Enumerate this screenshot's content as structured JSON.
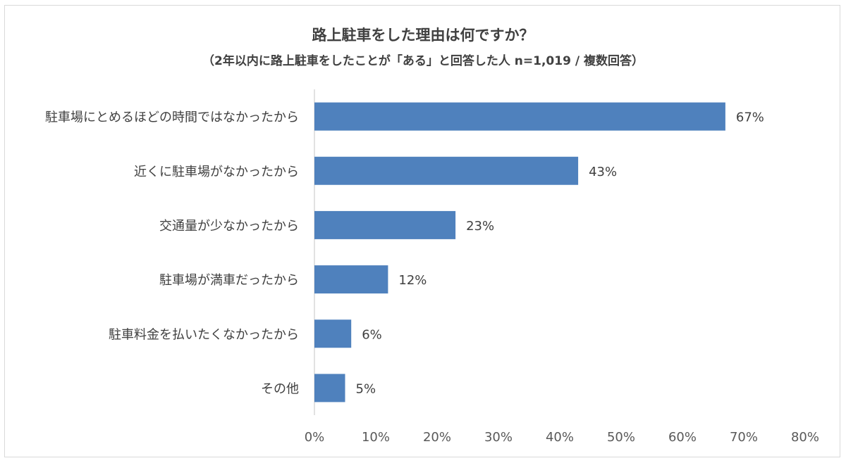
{
  "chart_data": {
    "type": "bar",
    "orientation": "horizontal",
    "title": "路上駐車をした理由は何ですか？",
    "subtitle": "（2年以内に路上駐車をしたことが「ある」と回答した人 n=1,019 / 複数回答）",
    "categories": [
      "駐車場にとめるほどの時間ではなかったから",
      "近くに駐車場がなかったから",
      "交通量が少なかったから",
      "駐車場が満車だったから",
      "駐車料金を払いたくなかったから",
      "その他"
    ],
    "values": [
      67,
      43,
      23,
      12,
      6,
      5
    ],
    "value_labels": [
      "67%",
      "43%",
      "23%",
      "12%",
      "6%",
      "5%"
    ],
    "xlim": [
      0,
      80
    ],
    "x_ticks": [
      0,
      10,
      20,
      30,
      40,
      50,
      60,
      70,
      80
    ],
    "x_tick_labels": [
      "0%",
      "10%",
      "20%",
      "30%",
      "40%",
      "50%",
      "60%",
      "70%",
      "80%"
    ],
    "grid": false,
    "bar_color": "#4f81bd"
  }
}
